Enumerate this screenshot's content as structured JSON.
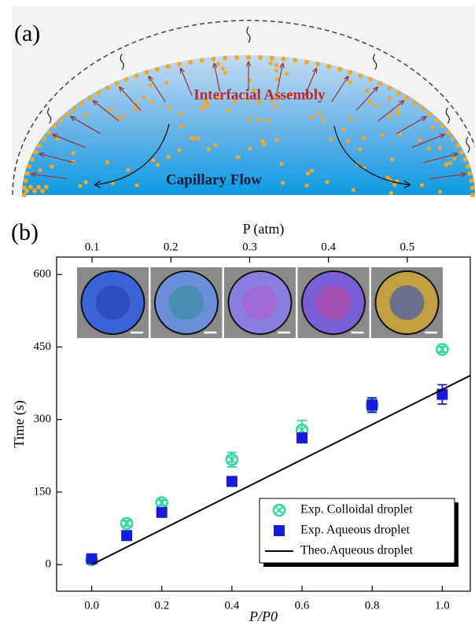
{
  "panel_a": {
    "label": "(a)",
    "annotations": [
      "Interfacial Assembly",
      "Capillary Flow"
    ]
  },
  "chart_data": {
    "type": "scatter",
    "label": "(b)",
    "x_label": "P/P0",
    "y_label": "Time (s)",
    "x2_label": "P (atm)",
    "xlim": [
      -0.1,
      1.08
    ],
    "xticks": [
      {
        "value": 0,
        "label": "0.0"
      },
      0.2,
      0.4,
      0.6,
      0.8,
      {
        "value": 1,
        "label": "1.0"
      }
    ],
    "ylim": [
      -55,
      636
    ],
    "yticks": [
      0,
      150,
      300,
      450,
      600
    ],
    "x2lim": [
      0.055,
      0.58
    ],
    "x2ticks": [
      0.1,
      0.2,
      0.3,
      0.4,
      0.5
    ],
    "legend": "lower right",
    "series": [
      {
        "name": "Exp. Colloidal droplet",
        "color": "#2ed8a0",
        "marker": "circle-x",
        "x": [
          0,
          0.1,
          0.2,
          0.4,
          0.6,
          0.8,
          1.0
        ],
        "values": [
          10,
          85,
          128,
          217,
          278,
          330,
          445
        ],
        "errors": [
          5,
          6,
          6,
          15,
          20,
          12,
          6
        ]
      },
      {
        "name": "Exp. Aqueous droplet",
        "color": "#1a1adb",
        "marker": "square",
        "x": [
          0,
          0.1,
          0.2,
          0.4,
          0.6,
          0.8,
          1.0
        ],
        "values": [
          12,
          60,
          108,
          172,
          262,
          330,
          352
        ],
        "errors": [
          4,
          4,
          4,
          4,
          10,
          15,
          20
        ]
      },
      {
        "name": "Theo.Aqueous droplet",
        "color": "#000000",
        "marker": "line",
        "x": [
          0,
          1.08
        ],
        "values": [
          0,
          391
        ]
      }
    ]
  }
}
